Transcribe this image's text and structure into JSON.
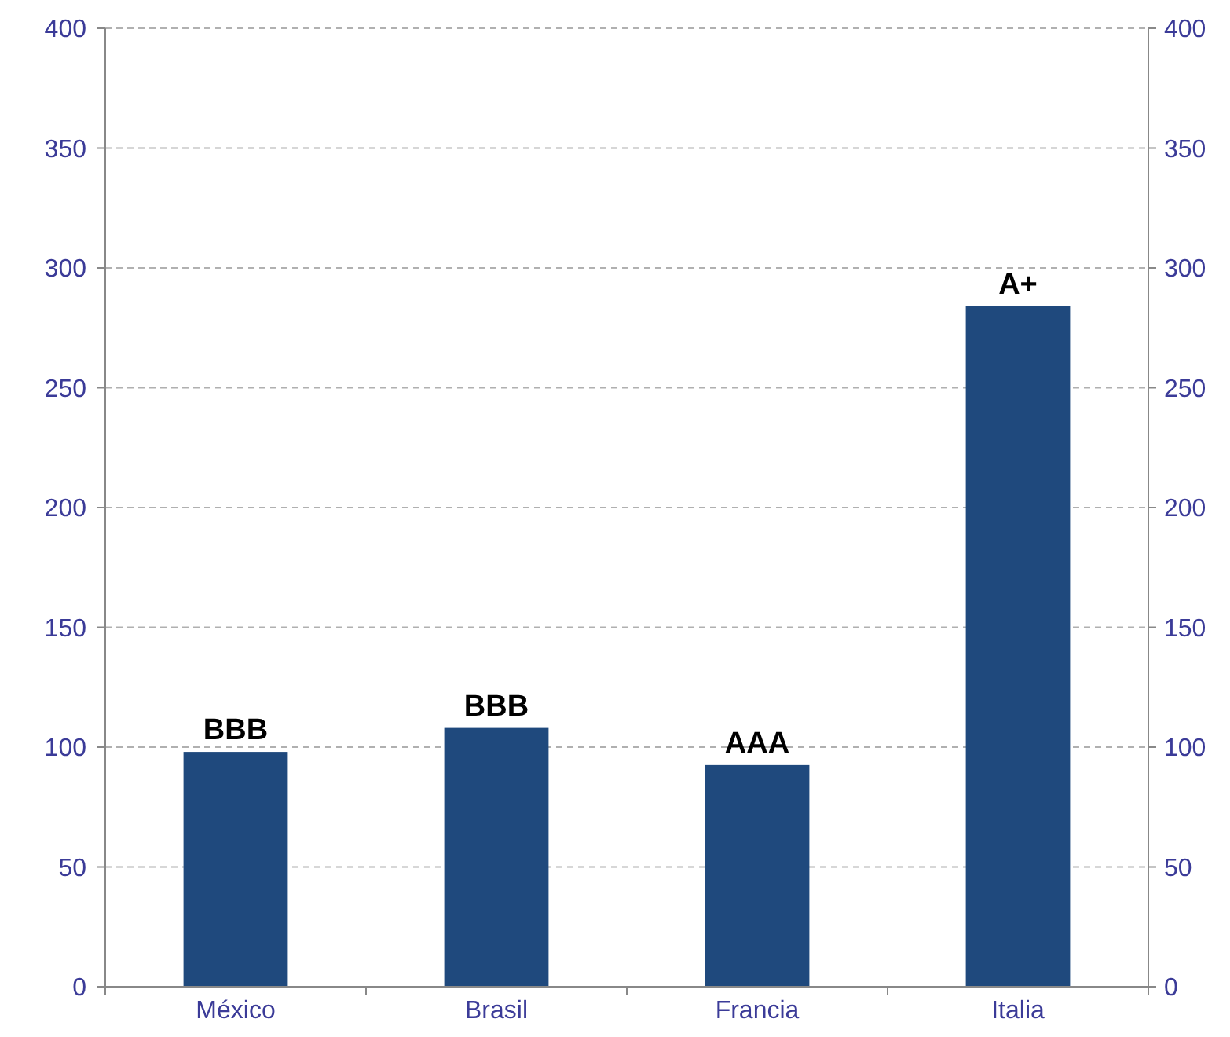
{
  "chart_data": {
    "type": "bar",
    "categories": [
      "México",
      "Brasil",
      "Francia",
      "Italia"
    ],
    "values": [
      98,
      108,
      92.5,
      284
    ],
    "color": "#1f497d",
    "value_labels": [
      "BBB",
      "BBB",
      "AAA",
      "A+"
    ],
    "ylim": [
      0,
      400
    ],
    "yticks": [
      0,
      50,
      100,
      150,
      200,
      250,
      300,
      350,
      400
    ],
    "y2lim": [
      0,
      400
    ],
    "y2ticks": [
      0,
      50,
      100,
      150,
      200,
      250,
      300,
      350,
      400
    ],
    "grid": "y"
  }
}
